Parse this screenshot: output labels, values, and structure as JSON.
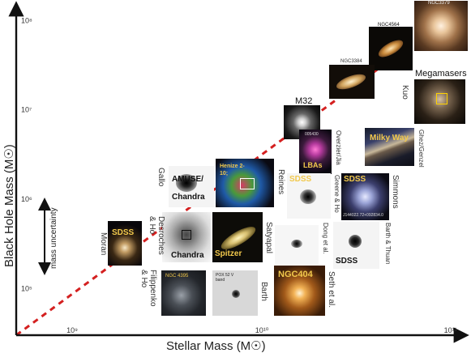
{
  "chart_data": {
    "type": "scatter",
    "title": "",
    "xlabel": "Stellar Mass (M☉)",
    "ylabel": "Black Hole Mass (M☉)",
    "x_scale": "log",
    "y_scale": "log",
    "xlim": [
      500000000,
      120000000000
    ],
    "ylim": [
      30000,
      150000000
    ],
    "x_ticks": [
      {
        "value": 1000000000,
        "label": "10⁹"
      },
      {
        "value": 10000000000,
        "label": "10¹⁰"
      },
      {
        "value": 100000000000,
        "label": "10¹¹"
      }
    ],
    "y_ticks": [
      {
        "value": 100000,
        "label": "10⁵"
      },
      {
        "value": 1000000,
        "label": "10⁶"
      },
      {
        "value": 10000000,
        "label": "10⁷"
      },
      {
        "value": 100000000,
        "label": "10⁸"
      }
    ],
    "trend_line": {
      "style": "dashed",
      "color": "#d42020",
      "x": [
        500000000,
        120000000000
      ],
      "y": [
        30000,
        150000000
      ]
    },
    "uncertainty_label": "mass uncertainty",
    "grid": false
  },
  "objects": {
    "ngc3379": {
      "caption": "NGC3379"
    },
    "ngc4564": {
      "caption": "NGC4564"
    },
    "ngc3384": {
      "caption": "NGC3384"
    },
    "megamasers": {
      "caption": "Megamasers",
      "reference": "Kuo"
    },
    "m32": {
      "caption": "M32"
    },
    "lbas": {
      "label": "LBAs",
      "mini": "005430",
      "reference": "Overzier/Jia"
    },
    "milkyway": {
      "label": "Milky Way",
      "reference": "Ghez/Genzel"
    },
    "amuse": {
      "label": "AMUSE/ Chandra",
      "reference": "Gallo"
    },
    "henize": {
      "label": "Henize 2-10;",
      "reference": "Reines"
    },
    "sdss_greene": {
      "label": "SDSS",
      "reference": "Greene & Ho"
    },
    "sdss_simmons": {
      "label": "SDSS",
      "mini": "J144022.72+092834.0",
      "reference": "Simmons"
    },
    "sdss_moran": {
      "label": "SDSS",
      "reference": "Moran"
    },
    "chandra_desroches": {
      "label": "Chandra",
      "reference": "Desroches & Ho"
    },
    "spitzer": {
      "label": "Spitzer",
      "reference": "Satyapal"
    },
    "dong": {
      "reference": "Dong et al."
    },
    "sdss_barth": {
      "label": "SDSS",
      "reference": "Barth & Thuan"
    },
    "ngc4395": {
      "label": "NGC 4395",
      "reference": "Filippenko & Ho"
    },
    "pox52": {
      "label": "POX 52 V band",
      "reference": "Barth"
    },
    "ngc404": {
      "label": "NGC404",
      "reference": "Seth et al."
    }
  },
  "colors": {
    "trend": "#d42020",
    "label_yellow": "#f2c94c",
    "axis": "#111111"
  }
}
